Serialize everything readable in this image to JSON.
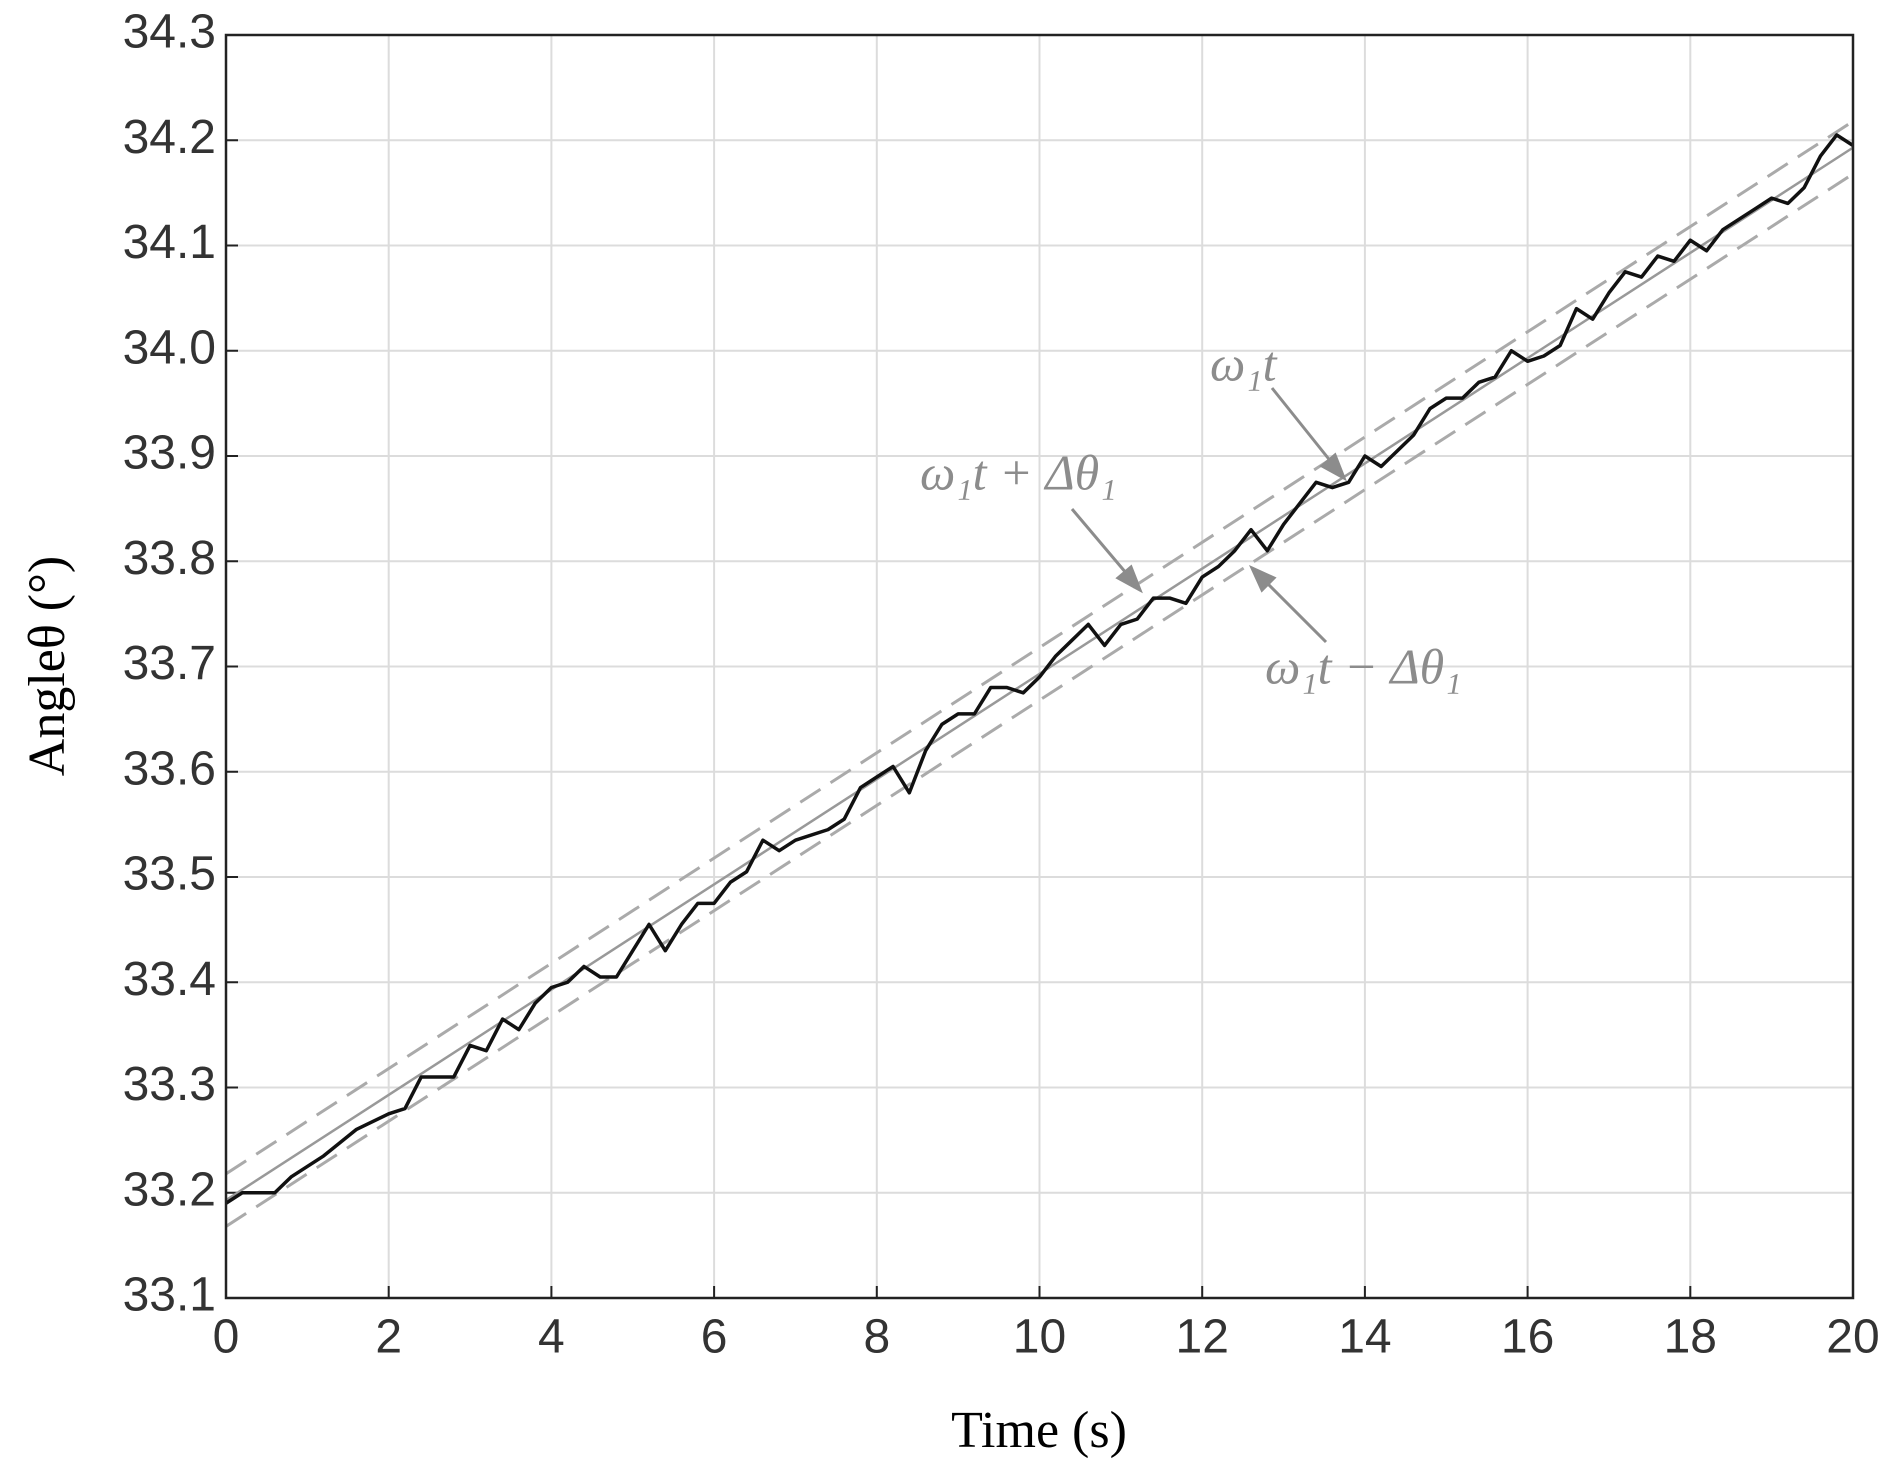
{
  "chart_data": {
    "type": "line",
    "x_label": "Time (s)",
    "y_label": "Angleθ (°)",
    "xlim": [
      0,
      20
    ],
    "ylim": [
      33.1,
      34.3
    ],
    "xticks": [
      0,
      2,
      4,
      6,
      8,
      10,
      12,
      14,
      16,
      18,
      20
    ],
    "yticks": [
      33.1,
      33.2,
      33.3,
      33.4,
      33.5,
      33.6,
      33.7,
      33.8,
      33.9,
      {
        "value": 34,
        "label": "34.0"
      },
      34.1,
      34.2,
      34.3
    ],
    "grid": true,
    "annotations": [
      "ω₁t + Δθ₁",
      "ω₁t",
      "ω₁t − Δθ₁"
    ],
    "series": [
      {
        "color": "#aaaaaa",
        "dashed": true,
        "x": [
          0,
          20
        ],
        "values": [
          33.218,
          34.218
        ]
      },
      {
        "color": "#999999",
        "dashed": false,
        "x": [
          0,
          20
        ],
        "values": [
          33.193,
          34.193
        ]
      },
      {
        "color": "#aaaaaa",
        "dashed": true,
        "x": [
          0,
          20
        ],
        "values": [
          33.168,
          34.168
        ]
      },
      {
        "color": "#111111",
        "dashed": false,
        "x": [
          0,
          0.2,
          0.6,
          0.8,
          1,
          1.2,
          1.6,
          2,
          2.2,
          2.4,
          2.8,
          3,
          3.2,
          3.4,
          3.6,
          3.8,
          4,
          4.2,
          4.4,
          4.6,
          4.8,
          5,
          5.2,
          5.4,
          5.6,
          5.8,
          6,
          6.2,
          6.4,
          6.6,
          6.8,
          7,
          7.4,
          7.6,
          7.8,
          8,
          8.2,
          8.4,
          8.6,
          8.8,
          9,
          9.2,
          9.4,
          9.6,
          9.8,
          10,
          10.2,
          10.4,
          10.6,
          10.8,
          11,
          11.2,
          11.4,
          11.6,
          11.8,
          12,
          12.2,
          12.4,
          12.6,
          12.8,
          13,
          13.2,
          13.4,
          13.6,
          13.8,
          14,
          14.2,
          14.4,
          14.6,
          14.8,
          15,
          15.2,
          15.4,
          15.6,
          15.8,
          16,
          16.2,
          16.4,
          16.6,
          16.8,
          17,
          17.2,
          17.4,
          17.6,
          17.8,
          18,
          18.2,
          18.4,
          18.6,
          18.8,
          19,
          19.2,
          19.4,
          19.6,
          19.8,
          20
        ],
        "values": [
          33.19,
          33.2,
          33.2,
          33.215,
          33.225,
          33.235,
          33.26,
          33.275,
          33.28,
          33.31,
          33.31,
          33.34,
          33.335,
          33.365,
          33.355,
          33.38,
          33.395,
          33.4,
          33.415,
          33.405,
          33.405,
          33.43,
          33.455,
          33.43,
          33.455,
          33.475,
          33.475,
          33.495,
          33.505,
          33.535,
          33.525,
          33.535,
          33.545,
          33.555,
          33.585,
          33.595,
          33.605,
          33.58,
          33.62,
          33.645,
          33.655,
          33.655,
          33.68,
          33.68,
          33.675,
          33.69,
          33.71,
          33.725,
          33.74,
          33.72,
          33.74,
          33.745,
          33.765,
          33.765,
          33.76,
          33.785,
          33.795,
          33.81,
          33.83,
          33.81,
          33.835,
          33.855,
          33.875,
          33.87,
          33.875,
          33.9,
          33.89,
          33.905,
          33.92,
          33.945,
          33.955,
          33.955,
          33.97,
          33.975,
          34.0,
          33.99,
          33.995,
          34.005,
          34.04,
          34.03,
          34.055,
          34.075,
          34.07,
          34.09,
          34.085,
          34.105,
          34.095,
          34.115,
          34.125,
          34.135,
          34.145,
          34.14,
          34.155,
          34.185,
          34.205,
          34.195
        ]
      }
    ]
  }
}
